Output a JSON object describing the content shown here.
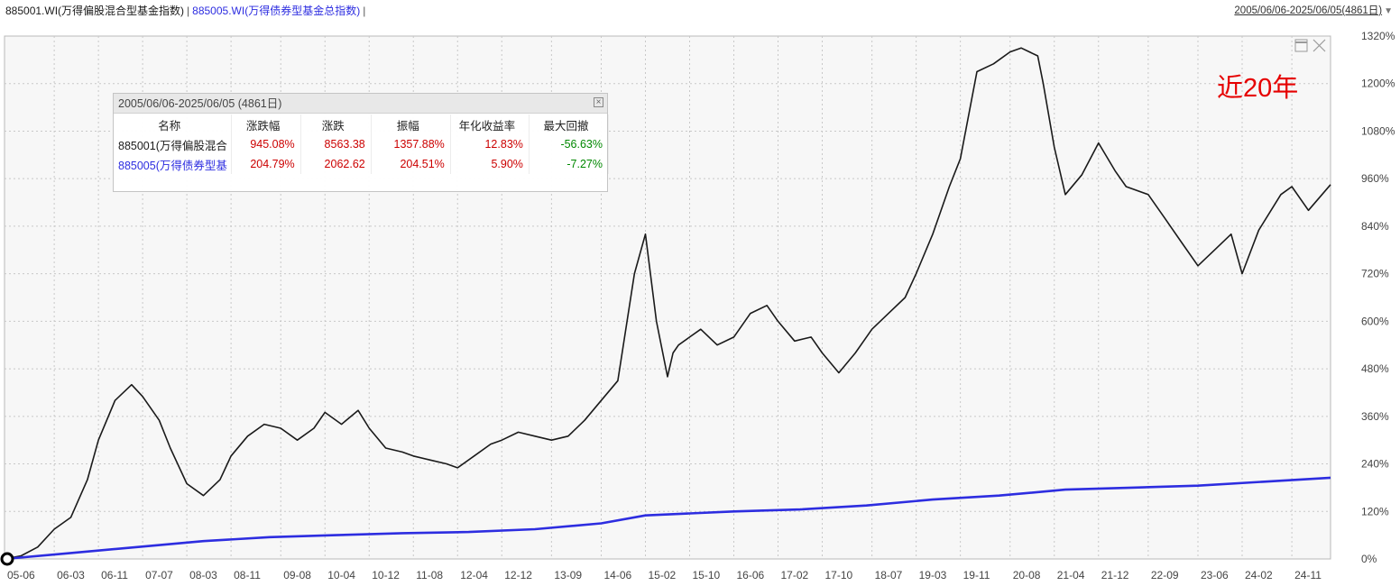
{
  "title": {
    "series_a": "885001.WI(万得偏股混合型基金指数)",
    "separator": "|",
    "series_b": "885005.WI(万得债券型基金总指数)",
    "separator2": "|",
    "date_range": "2005/06/06-2025/06/05(4861日)"
  },
  "colors": {
    "series_a": "#1a1a1a",
    "series_b": "#2d2de0",
    "gain": "#cc0000",
    "loss": "#008800",
    "annotation": "#e60000",
    "grid": "#c8c8c8",
    "plot_bg": "#f7f7f7"
  },
  "stats": {
    "period": "2005/06/06-2025/06/05 (4861日)",
    "close_icon": "close-icon",
    "headers": [
      "名称",
      "涨跌幅",
      "涨跌",
      "振幅",
      "年化收益率",
      "最大回撤"
    ],
    "rows": [
      {
        "name": "885001(万得偏股混合",
        "change_pct": "945.08%",
        "change": "8563.38",
        "amplitude": "1357.88%",
        "annualized": "12.83%",
        "max_drawdown": "-56.63%"
      },
      {
        "name": "885005(万得债券型基",
        "change_pct": "204.79%",
        "change": "2062.62",
        "amplitude": "204.51%",
        "annualized": "5.90%",
        "max_drawdown": "-7.27%"
      }
    ]
  },
  "annotation": "近20年",
  "chart_data": {
    "type": "line",
    "x_tick_labels": [
      "05-06",
      "06-03",
      "06-11",
      "07-07",
      "08-03",
      "08-11",
      "09-08",
      "10-04",
      "10-12",
      "11-08",
      "12-04",
      "12-12",
      "13-09",
      "14-06",
      "15-02",
      "15-10",
      "16-06",
      "17-02",
      "17-10",
      "18-07",
      "19-03",
      "19-11",
      "20-08",
      "21-04",
      "21-12",
      "22-09",
      "23-06",
      "24-02",
      "24-11"
    ],
    "y_tick_labels": [
      "0%",
      "120%",
      "240%",
      "360%",
      "480%",
      "600%",
      "720%",
      "840%",
      "960%",
      "1080%",
      "1200%",
      "1320%"
    ],
    "y_unit": "%",
    "ylim": [
      0,
      1320
    ],
    "grid": true,
    "series": [
      {
        "name": "885001(万得偏股混合",
        "x": [
          "2005-06",
          "2005-09",
          "2005-12",
          "2006-03",
          "2006-06",
          "2006-09",
          "2006-11",
          "2007-02",
          "2007-05",
          "2007-07",
          "2007-10",
          "2007-12",
          "2008-03",
          "2008-06",
          "2008-09",
          "2008-11",
          "2009-02",
          "2009-05",
          "2009-08",
          "2009-11",
          "2010-02",
          "2010-04",
          "2010-07",
          "2010-10",
          "2010-12",
          "2011-03",
          "2011-06",
          "2011-08",
          "2011-11",
          "2012-02",
          "2012-04",
          "2012-07",
          "2012-10",
          "2012-12",
          "2013-03",
          "2013-06",
          "2013-09",
          "2013-12",
          "2014-03",
          "2014-06",
          "2014-09",
          "2014-12",
          "2015-02",
          "2015-04",
          "2015-06",
          "2015-07",
          "2015-08",
          "2015-10",
          "2015-12",
          "2016-03",
          "2016-06",
          "2016-09",
          "2016-12",
          "2017-02",
          "2017-05",
          "2017-08",
          "2017-10",
          "2018-01",
          "2018-04",
          "2018-07",
          "2018-10",
          "2019-01",
          "2019-03",
          "2019-06",
          "2019-09",
          "2019-11",
          "2020-02",
          "2020-05",
          "2020-08",
          "2020-10",
          "2021-01",
          "2021-02",
          "2021-04",
          "2021-06",
          "2021-09",
          "2021-12",
          "2022-03",
          "2022-05",
          "2022-09",
          "2022-12",
          "2023-03",
          "2023-06",
          "2023-09",
          "2023-12",
          "2024-02",
          "2024-05",
          "2024-09",
          "2024-11",
          "2025-02",
          "2025-06"
        ],
        "values": [
          0,
          8,
          30,
          75,
          105,
          200,
          300,
          400,
          440,
          410,
          350,
          280,
          190,
          160,
          200,
          260,
          310,
          340,
          330,
          300,
          330,
          370,
          340,
          375,
          330,
          280,
          270,
          260,
          250,
          240,
          230,
          260,
          290,
          300,
          320,
          310,
          300,
          310,
          350,
          400,
          450,
          720,
          820,
          600,
          460,
          520,
          540,
          560,
          580,
          540,
          560,
          620,
          640,
          600,
          550,
          560,
          520,
          470,
          520,
          580,
          620,
          660,
          720,
          820,
          940,
          1010,
          1230,
          1250,
          1280,
          1290,
          1270,
          1200,
          1040,
          920,
          970,
          1050,
          980,
          940,
          920,
          860,
          800,
          740,
          780,
          820,
          720,
          830,
          920,
          940,
          880,
          945
        ]
      },
      {
        "name": "885005(万得债券型基",
        "x": [
          "2005-06",
          "2006-06",
          "2007-06",
          "2008-06",
          "2009-06",
          "2010-06",
          "2011-06",
          "2012-06",
          "2013-06",
          "2014-06",
          "2015-02",
          "2015-10",
          "2016-06",
          "2017-06",
          "2018-06",
          "2019-06",
          "2020-06",
          "2021-06",
          "2022-06",
          "2023-06",
          "2024-06",
          "2025-06"
        ],
        "values": [
          0,
          15,
          30,
          45,
          55,
          60,
          65,
          68,
          75,
          90,
          110,
          115,
          120,
          125,
          135,
          150,
          160,
          175,
          180,
          185,
          195,
          205
        ]
      }
    ]
  }
}
